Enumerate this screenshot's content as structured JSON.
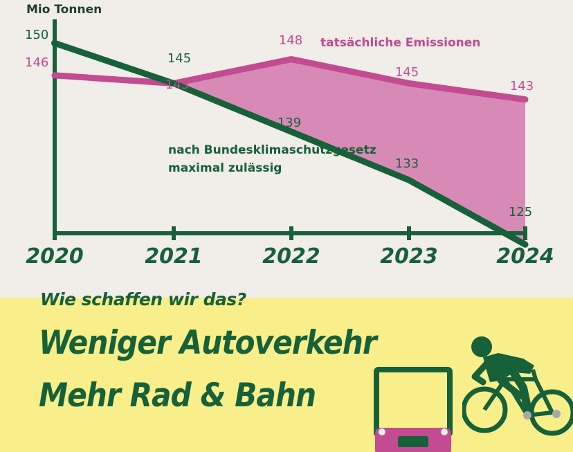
{
  "chart_data": {
    "type": "line",
    "ylabel": "Mio Tonnen",
    "categories": [
      "2020",
      "2021",
      "2022",
      "2023",
      "2024"
    ],
    "ylim": [
      120,
      152
    ],
    "grid": false,
    "series": [
      {
        "name": "tatsächliche Emissionen",
        "values": [
          146,
          145,
          148,
          145,
          143
        ],
        "labels": [
          "146",
          "145",
          "148",
          "145",
          "143"
        ],
        "color": "#c24b92"
      },
      {
        "name": "nach Bundesklimaschutzgesetz maximal zulässig",
        "values": [
          150,
          145,
          139,
          133,
          125
        ],
        "labels": [
          "150",
          "145",
          "139",
          "133",
          "125"
        ],
        "color": "#16603a"
      }
    ],
    "fill_between": {
      "from_index": 1,
      "color": "#d88ab6"
    }
  },
  "banner": {
    "question": "Wie schaffen wir das?",
    "headline_1": "Weniger Autoverkehr",
    "headline_2": "Mehr Rad & Bahn",
    "icons": [
      "tram-icon",
      "cyclist-icon"
    ],
    "background": "#f8ef8a"
  }
}
